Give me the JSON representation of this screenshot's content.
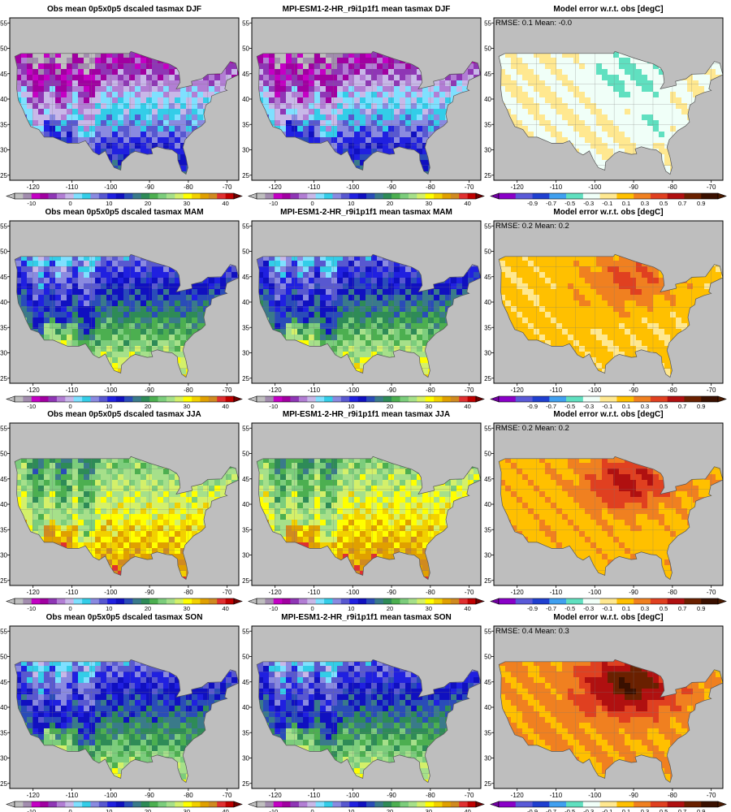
{
  "rows": [
    {
      "season": "DJF",
      "obs_title": "Obs mean 0p5x0p5 dscaled tasmax DJF",
      "model_title": "MPI-ESM1-2-HR_r9i1p1f1 mean tasmax DJF",
      "error_title": "Model error w.r.t. obs [degC]",
      "stats": "RMSE: 0.1  Mean: -0.0",
      "obs_mean_south": 15,
      "obs_mean_north": -10,
      "error_level": -0.15
    },
    {
      "season": "MAM",
      "obs_title": "Obs mean 0p5x0p5 dscaled tasmax MAM",
      "model_title": "MPI-ESM1-2-HR_r9i1p1f1 mean tasmax MAM",
      "error_title": "Model error w.r.t. obs [degC]",
      "stats": "RMSE: 0.2  Mean: 0.2",
      "obs_mean_south": 30,
      "obs_mean_north": 5,
      "error_level": 0.25
    },
    {
      "season": "JJA",
      "obs_title": "Obs mean 0p5x0p5 dscaled tasmax JJA",
      "model_title": "MPI-ESM1-2-HR_r9i1p1f1 mean tasmax JJA",
      "error_title": "Model error w.r.t. obs [degC]",
      "stats": "RMSE: 0.2  Mean: 0.2",
      "obs_mean_south": 36,
      "obs_mean_north": 22,
      "error_level": 0.35
    },
    {
      "season": "SON",
      "obs_title": "Obs mean 0p5x0p5 dscaled tasmax SON",
      "model_title": "MPI-ESM1-2-HR_r9i1p1f1 mean tasmax SON",
      "error_title": "Model error w.r.t. obs [degC]",
      "stats": "RMSE: 0.4  Mean: 0.3",
      "obs_mean_south": 28,
      "obs_mean_north": 5,
      "error_level": 0.5
    }
  ],
  "lon_ticks": [
    "-120",
    "-110",
    "-100",
    "-90",
    "-80",
    "-70"
  ],
  "lat_ticks": [
    "25",
    "30",
    "35",
    "40",
    "45",
    "50",
    "55"
  ],
  "temp_colorbar": {
    "tick_labels": [
      "-10",
      "0",
      "10",
      "20",
      "30",
      "40"
    ],
    "colors": [
      "#bfbfbf",
      "#a28cae",
      "#c400c4",
      "#a100a1",
      "#8f36b5",
      "#b27ed4",
      "#c8b8e8",
      "#7fe0ff",
      "#33cde8",
      "#8a8ae0",
      "#5858d0",
      "#2020e0",
      "#1010c0",
      "#2a4cb8",
      "#3a7a8a",
      "#2e8b57",
      "#4caf50",
      "#7ccd7c",
      "#a6e08a",
      "#d4f06a",
      "#ffff00",
      "#f2d000",
      "#e0a000",
      "#d08a20",
      "#e03030",
      "#c00000"
    ],
    "under_color": "#bfbfbf",
    "over_color": "#6e0000"
  },
  "error_colorbar": {
    "tick_labels": [
      "-0.9",
      "-0.7",
      "-0.5",
      "-0.3",
      "-0.1",
      "0.1",
      "0.3",
      "0.5",
      "0.7",
      "0.9"
    ],
    "colors": [
      "#8a00c8",
      "#5a5ad8",
      "#1f3fd0",
      "#40a0f0",
      "#60e0c0",
      "#f0fff8",
      "#ffe890",
      "#ffc000",
      "#f08020",
      "#e04020",
      "#b01010",
      "#6a2000",
      "#3a1000"
    ],
    "under_color": "#7000a0",
    "over_color": "#4a1a00"
  },
  "colors": {
    "land_mask": "#bebebe",
    "ocean": "#bebebe",
    "borders": "#777777"
  }
}
